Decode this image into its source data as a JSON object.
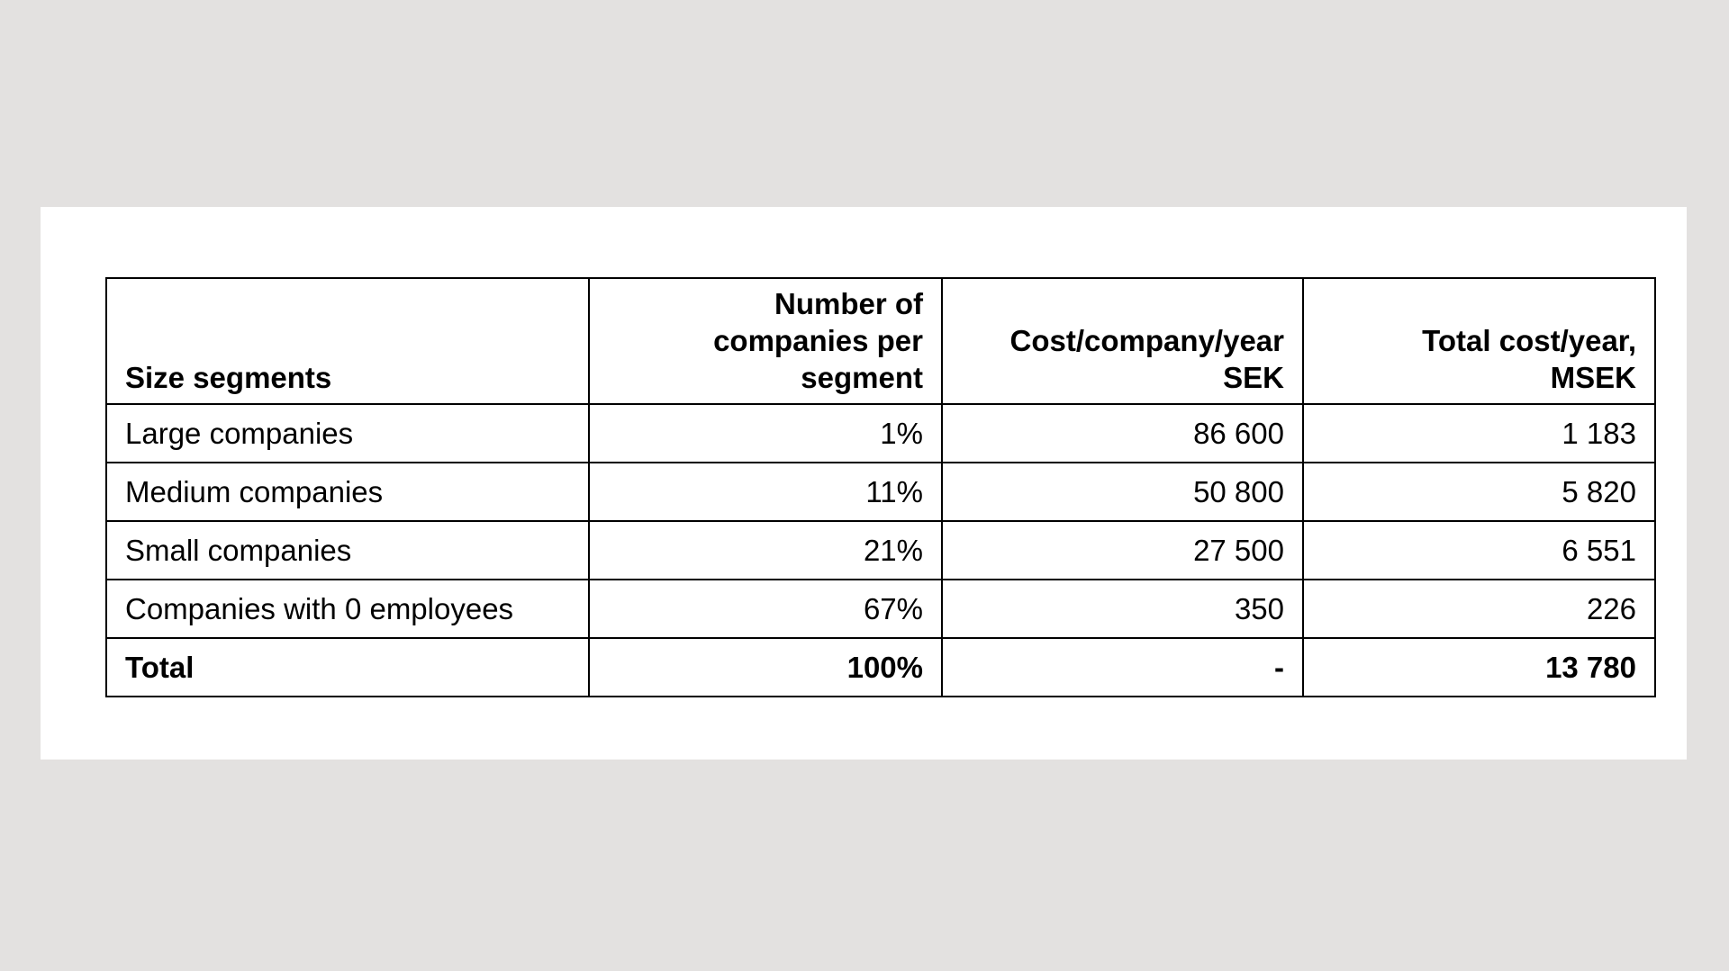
{
  "page": {
    "background_color": "#e3e1e0",
    "page_color": "#ffffff",
    "border_color": "#000000",
    "text_color": "#000000"
  },
  "table": {
    "header": {
      "size_segments": "Size segments",
      "number_of_companies": "Number of\ncompanies per\nsegment",
      "cost_per_company": "Cost/company/year\nSEK",
      "total_cost": "Total cost/year,\nMSEK"
    },
    "rows": [
      {
        "segment": "Large companies",
        "share": "1%",
        "cost_per_company": "86 600",
        "total_cost": "1 183"
      },
      {
        "segment": "Medium companies",
        "share": "11%",
        "cost_per_company": "50 800",
        "total_cost": "5 820"
      },
      {
        "segment": "Small companies",
        "share": "21%",
        "cost_per_company": "27 500",
        "total_cost": "6 551"
      },
      {
        "segment": "Companies with 0 employees",
        "share": "67%",
        "cost_per_company": "350",
        "total_cost": "226"
      }
    ],
    "total": {
      "segment": "Total",
      "share": "100%",
      "cost_per_company": "-",
      "total_cost": "13 780"
    }
  }
}
